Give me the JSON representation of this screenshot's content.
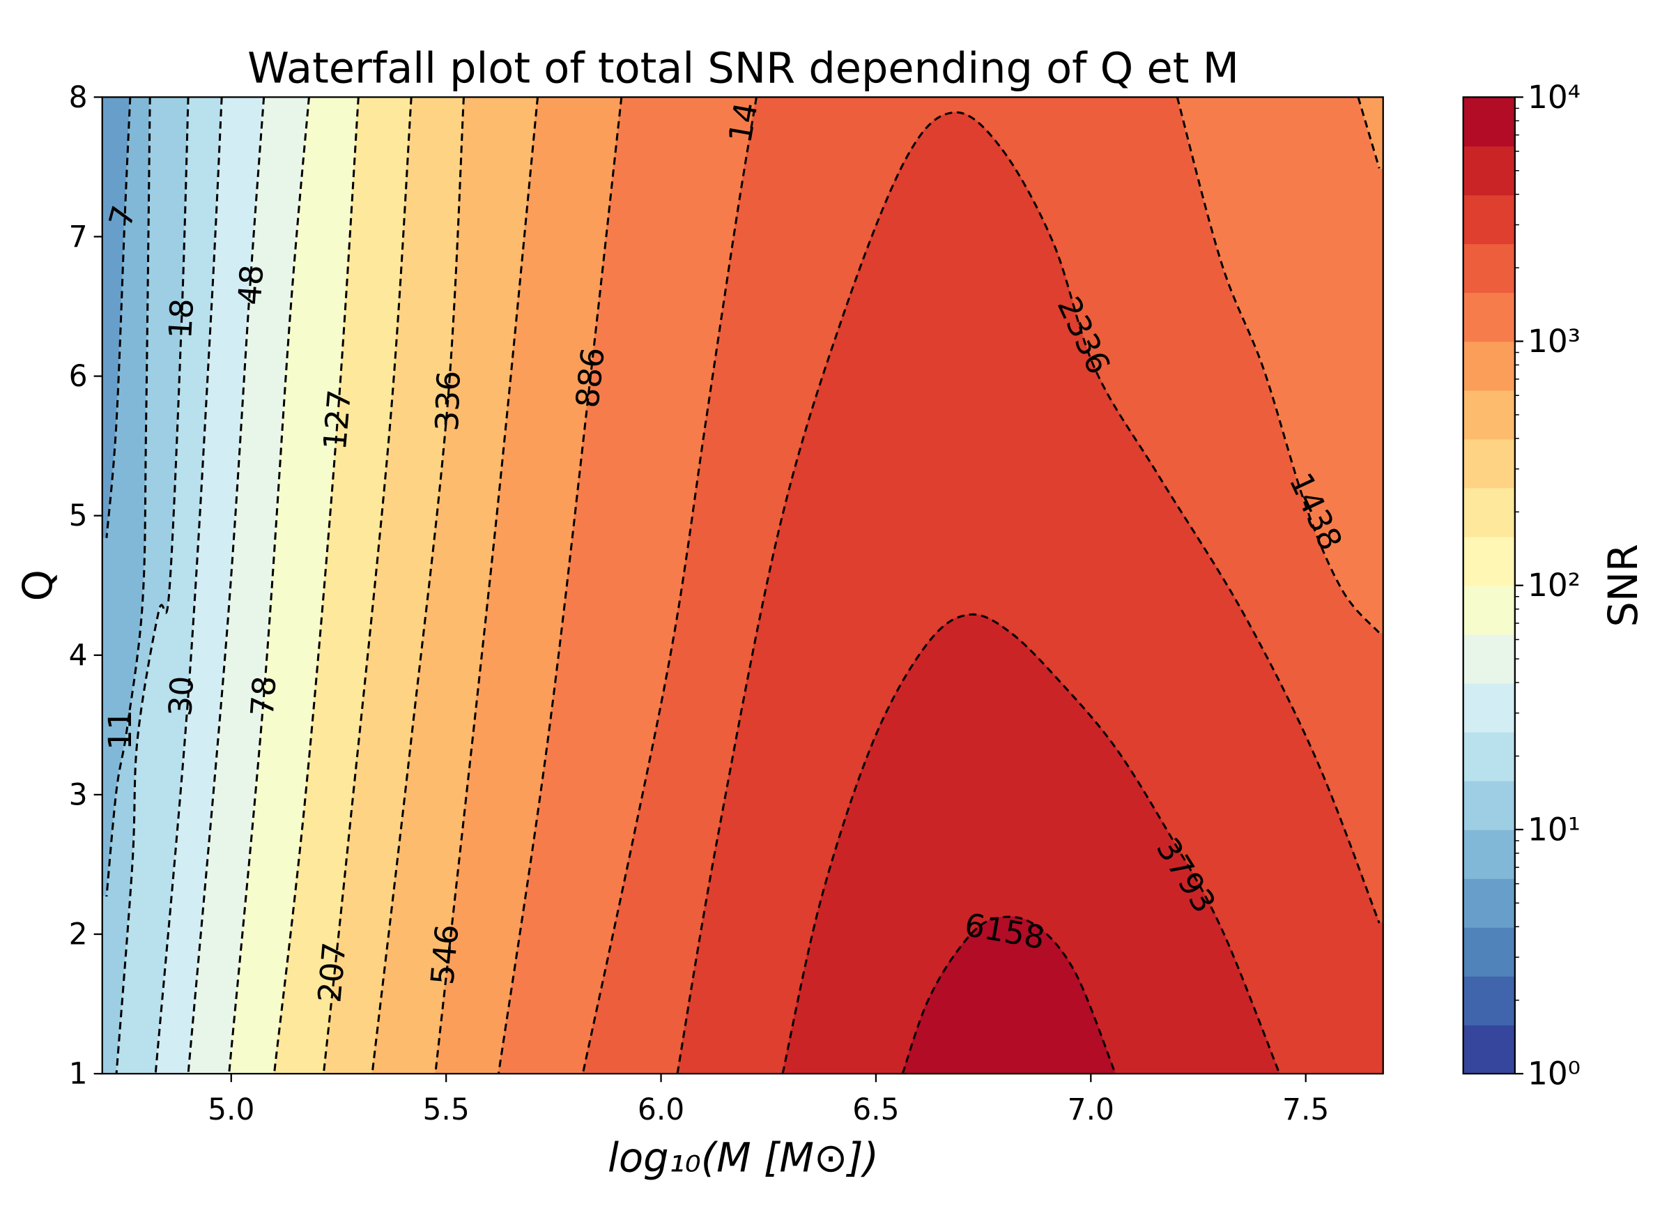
{
  "chart_data": {
    "type": "contour",
    "title": "Waterfall plot of total SNR depending of Q et M",
    "xlabel": "log₁₀(M [M⊙])",
    "ylabel": "Q",
    "xlim": [
      4.7,
      7.68
    ],
    "ylim": [
      1,
      8
    ],
    "xticks": [
      {
        "value": 5,
        "label": "5.0"
      },
      {
        "value": 5.5,
        "label": "5.5"
      },
      {
        "value": 6,
        "label": "6.0"
      },
      {
        "value": 6.5,
        "label": "6.5"
      },
      {
        "value": 7,
        "label": "7.0"
      },
      {
        "value": 7.5,
        "label": "7.5"
      }
    ],
    "yticks": [
      1,
      2,
      3,
      4,
      5,
      6,
      7,
      8
    ],
    "line_color": "#000000",
    "line_style": "dashed",
    "colorbar": {
      "label": "SNR",
      "scale": "log",
      "lim": [
        1,
        10000
      ],
      "ticks": [
        {
          "value": 1,
          "label": "10⁰"
        },
        {
          "value": 10,
          "label": "10¹"
        },
        {
          "value": 100,
          "label": "10²"
        },
        {
          "value": 1000,
          "label": "10³"
        },
        {
          "value": 10000,
          "label": "10⁴"
        }
      ],
      "minor_ticks": [
        2,
        3,
        4,
        5,
        6,
        7,
        8,
        9,
        20,
        30,
        40,
        50,
        60,
        70,
        80,
        90,
        200,
        300,
        400,
        500,
        600,
        700,
        800,
        900,
        2000,
        3000,
        4000,
        5000,
        6000,
        7000,
        8000,
        9000
      ],
      "bands": 20,
      "colormap": [
        "#313695",
        "#4575b4",
        "#74add1",
        "#abd9e9",
        "#e0f3f8",
        "#ffffbf",
        "#fee090",
        "#fdae61",
        "#f46d43",
        "#d73027",
        "#a50026"
      ]
    },
    "contours": [
      {
        "level": 7,
        "x": [
          4.765,
          4.753,
          4.733,
          4.71
        ],
        "y": [
          8,
          7.18,
          5.67,
          4.84
        ]
      },
      {
        "level": 11,
        "x": [
          4.811,
          4.802,
          4.794,
          4.758,
          4.733,
          4.71
        ],
        "y": [
          8,
          5.67,
          4.39,
          3.48,
          3.03,
          2.27
        ]
      },
      {
        "level": 18,
        "x": [
          4.9,
          4.885,
          4.856,
          4.831,
          4.782,
          4.77,
          4.733
        ],
        "y": [
          8,
          6.43,
          4.46,
          4.31,
          3.4,
          2.5,
          1
        ]
      },
      {
        "level": 30,
        "x": [
          4.978,
          4.953,
          4.9,
          4.824
        ],
        "y": [
          8,
          6.43,
          3.71,
          1
        ]
      },
      {
        "level": 48,
        "x": [
          5.076,
          5.044,
          4.99,
          4.9
        ],
        "y": [
          8,
          6.65,
          4.16,
          1
        ]
      },
      {
        "level": 78,
        "x": [
          5.181,
          5.137,
          5.076,
          4.995
        ],
        "y": [
          8,
          6.43,
          3.71,
          1
        ]
      },
      {
        "level": 127,
        "x": [
          5.296,
          5.247,
          5.174,
          5.1
        ],
        "y": [
          8,
          5.67,
          3.03,
          1
        ]
      },
      {
        "level": 207,
        "x": [
          5.419,
          5.37,
          5.272,
          5.215
        ],
        "y": [
          8,
          5.67,
          2.65,
          1
        ]
      },
      {
        "level": 336,
        "x": [
          5.541,
          5.504,
          5.419,
          5.328
        ],
        "y": [
          8,
          5.82,
          3.4,
          1
        ]
      },
      {
        "level": 546,
        "x": [
          5.713,
          5.615,
          5.475
        ],
        "y": [
          8,
          4.92,
          1
        ]
      },
      {
        "level": 886,
        "x": [
          5.908,
          5.835,
          5.737,
          5.622,
          null,
          7.622,
          7.671
        ],
        "y": [
          8,
          5.97,
          3.4,
          1,
          null,
          8,
          7.49
        ]
      },
      {
        "level": 1438,
        "clipped_label": "14",
        "x": [
          6.222,
          6.178,
          6.104,
          6.031,
          5.933,
          5.818,
          null,
          7.201,
          7.304,
          7.402,
          7.5,
          7.586,
          7.671
        ],
        "y": [
          8,
          7.18,
          5.67,
          4.16,
          2.65,
          1,
          null,
          8,
          6.81,
          6.05,
          5.07,
          4.46,
          4.16
        ]
      },
      {
        "level": 2336,
        "x": [
          6.038,
          6.129,
          6.276,
          6.423,
          6.57,
          6.68,
          6.79,
          6.912,
          7.01,
          7.157,
          7.353,
          7.525,
          7.671
        ],
        "y": [
          1,
          2.65,
          4.92,
          6.43,
          7.56,
          7.89,
          7.64,
          6.96,
          6.05,
          5.29,
          4.31,
          3.25,
          2.08
        ]
      },
      {
        "level": 3793,
        "x": [
          6.283,
          6.374,
          6.496,
          6.619,
          6.716,
          6.814,
          6.937,
          7.059,
          7.182,
          7.304,
          7.439
        ],
        "y": [
          1,
          2.27,
          3.4,
          4.08,
          4.29,
          4.16,
          3.78,
          3.33,
          2.72,
          2.04,
          1
        ]
      },
      {
        "level": 6158,
        "x": [
          6.562,
          6.619,
          6.692,
          6.765,
          6.863,
          6.961,
          7.057
        ],
        "y": [
          1,
          1.51,
          1.89,
          2.1,
          2.08,
          1.74,
          1
        ]
      }
    ]
  }
}
